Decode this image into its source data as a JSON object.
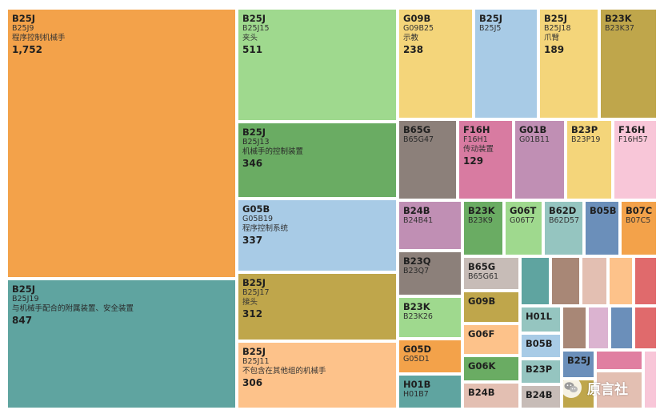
{
  "chart_data": {
    "type": "treemap",
    "cells": [
      {
        "group": "B25J",
        "code": "B25J9",
        "desc": "程序控制机械手",
        "value": "1,752",
        "color": "#f3a24a"
      },
      {
        "group": "B25J",
        "code": "B25J19",
        "desc": "与机械手配合的附属装置、安全装置",
        "value": "847",
        "color": "#5fa4a0"
      },
      {
        "group": "B25J",
        "code": "B25J15",
        "desc": "夹头",
        "value": "511",
        "color": "#9fd98e"
      },
      {
        "group": "B25J",
        "code": "B25J13",
        "desc": "机械手的控制装置",
        "value": "346",
        "color": "#6aac63"
      },
      {
        "group": "G05B",
        "code": "G05B19",
        "desc": "程序控制系统",
        "value": "337",
        "color": "#a8cbe6"
      },
      {
        "group": "B25J",
        "code": "B25J17",
        "desc": "接头",
        "value": "312",
        "color": "#bfa64b"
      },
      {
        "group": "B25J",
        "code": "B25J11",
        "desc": "不包含在其他组的机械手",
        "value": "306",
        "color": "#fdc28a"
      },
      {
        "group": "G09B",
        "code": "G09B25",
        "desc": "示教",
        "value": "238",
        "color": "#f4d57a"
      },
      {
        "group": "B25J",
        "code": "B25J5",
        "desc": "",
        "value": "",
        "color": "#a8cbe6"
      },
      {
        "group": "B25J",
        "code": "B25J18",
        "desc": "爪臂",
        "value": "189",
        "color": "#f4d57a"
      },
      {
        "group": "B23K",
        "code": "B23K37",
        "desc": "",
        "value": "",
        "color": "#bfa64b"
      },
      {
        "group": "B65G",
        "code": "B65G47",
        "desc": "",
        "value": "",
        "color": "#8c807a"
      },
      {
        "group": "F16H",
        "code": "F16H1",
        "desc": "传动装置",
        "value": "129",
        "color": "#d87ba1"
      },
      {
        "group": "G01B",
        "code": "G01B11",
        "desc": "",
        "value": "",
        "color": "#c08fb4"
      },
      {
        "group": "B23P",
        "code": "B23P19",
        "desc": "",
        "value": "",
        "color": "#f4d57a"
      },
      {
        "group": "F16H",
        "code": "F16H57",
        "desc": "",
        "value": "",
        "color": "#f8c6d8"
      },
      {
        "group": "B24B",
        "code": "B24B41",
        "desc": "",
        "value": "",
        "color": "#c08fb4"
      },
      {
        "group": "B23K",
        "code": "B23K9",
        "desc": "",
        "value": "",
        "color": "#6aac63"
      },
      {
        "group": "G06T",
        "code": "G06T7",
        "desc": "",
        "value": "",
        "color": "#9fd98e"
      },
      {
        "group": "B62D",
        "code": "B62D57",
        "desc": "",
        "value": "",
        "color": "#95c5c0"
      },
      {
        "group": "B05B",
        "code": "",
        "desc": "",
        "value": "",
        "color": "#6b8fba"
      },
      {
        "group": "B07C",
        "code": "B07C5",
        "desc": "",
        "value": "",
        "color": "#f3a24a"
      },
      {
        "group": "B23Q",
        "code": "B23Q7",
        "desc": "",
        "value": "",
        "color": "#8c807a"
      },
      {
        "group": "B65G",
        "code": "B65G61",
        "desc": "",
        "value": "",
        "color": "#c7bcb7"
      },
      {
        "group": "",
        "code": "",
        "desc": "",
        "value": "",
        "color": "#5fa4a0"
      },
      {
        "group": "",
        "code": "",
        "desc": "",
        "value": "",
        "color": "#a88776"
      },
      {
        "group": "",
        "code": "",
        "desc": "",
        "value": "",
        "color": "#e3bfb2"
      },
      {
        "group": "",
        "code": "",
        "desc": "",
        "value": "",
        "color": "#fdc28a"
      },
      {
        "group": "",
        "code": "",
        "desc": "",
        "value": "",
        "color": "#e06a6c"
      },
      {
        "group": "B23K",
        "code": "B23K26",
        "desc": "",
        "value": "",
        "color": "#9fd98e"
      },
      {
        "group": "G09B",
        "code": "",
        "desc": "",
        "value": "",
        "color": "#bfa64b"
      },
      {
        "group": "H01L",
        "code": "",
        "desc": "",
        "value": "",
        "color": "#95c5c0"
      },
      {
        "group": "",
        "code": "",
        "desc": "",
        "value": "",
        "color": "#a88776"
      },
      {
        "group": "",
        "code": "",
        "desc": "",
        "value": "",
        "color": "#dbb3d0"
      },
      {
        "group": "",
        "code": "",
        "desc": "",
        "value": "",
        "color": "#6b8fba"
      },
      {
        "group": "",
        "code": "",
        "desc": "",
        "value": "",
        "color": "#e06a6c"
      },
      {
        "group": "G05D",
        "code": "G05D1",
        "desc": "",
        "value": "",
        "color": "#f3a24a"
      },
      {
        "group": "G06F",
        "code": "",
        "desc": "",
        "value": "",
        "color": "#fdc28a"
      },
      {
        "group": "B05B",
        "code": "",
        "desc": "",
        "value": "",
        "color": "#a8cbe6"
      },
      {
        "group": "G06K",
        "code": "",
        "desc": "",
        "value": "",
        "color": "#6aac63"
      },
      {
        "group": "B23P",
        "code": "",
        "desc": "",
        "value": "",
        "color": "#95c5c0"
      },
      {
        "group": "B25J",
        "code": "",
        "desc": "",
        "value": "",
        "color": "#6b8fba"
      },
      {
        "group": "",
        "code": "",
        "desc": "",
        "value": "",
        "color": "#e07fa1"
      },
      {
        "group": "",
        "code": "",
        "desc": "",
        "value": "",
        "color": "#f8c6d8"
      },
      {
        "group": "",
        "code": "",
        "desc": "",
        "value": "",
        "color": "#e3bfb2"
      },
      {
        "group": "H01B",
        "code": "H01B7",
        "desc": "",
        "value": "",
        "color": "#5fa4a0"
      },
      {
        "group": "B24B",
        "code": "",
        "desc": "",
        "value": "",
        "color": "#e3bfb2"
      },
      {
        "group": "B24B",
        "code": "",
        "desc": "",
        "value": "",
        "color": "#c7bcb7"
      },
      {
        "group": "",
        "code": "",
        "desc": "",
        "value": "",
        "color": "#bfa64b"
      }
    ]
  },
  "watermark": {
    "text": "原言社"
  }
}
